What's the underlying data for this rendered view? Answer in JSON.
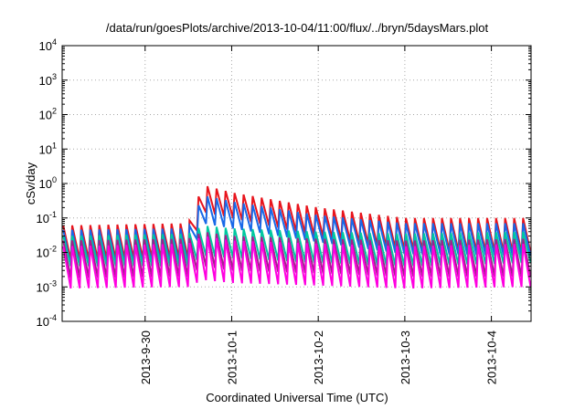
{
  "chart_data": {
    "type": "line",
    "title": "/data/run/goesPlots/archive/2013-10-04/11:00/flux/../bryn/5daysMars.plot",
    "xlabel": "Coordinated Universal Time (UTC)",
    "ylabel": "cSv/day",
    "yscale": "log",
    "ylim": [
      0.0001,
      10000
    ],
    "xlim": [
      "2013-09-29 01:00",
      "2013-10-04 11:00"
    ],
    "x_ticks": [
      "2013-9-30",
      "2013-10-1",
      "2013-10-2",
      "2013-10-3",
      "2013-10-4"
    ],
    "y_ticks": [
      {
        "base": "10",
        "exp": "4"
      },
      {
        "base": "10",
        "exp": "3"
      },
      {
        "base": "10",
        "exp": "2"
      },
      {
        "base": "10",
        "exp": "1"
      },
      {
        "base": "10",
        "exp": "0"
      },
      {
        "base": "10",
        "exp": "-1"
      },
      {
        "base": "10",
        "exp": "-2"
      },
      {
        "base": "10",
        "exp": "-3"
      },
      {
        "base": "10",
        "exp": "-4"
      }
    ],
    "y_tick_labels_plain": [
      "10^4",
      "10^3",
      "10^2",
      "10^1",
      "10^0",
      "10^-1",
      "10^-2",
      "10^-3",
      "10^-4"
    ],
    "grid": true,
    "legend": "none",
    "sawtooth_period_hours": 2.5,
    "series": [
      {
        "color": "#e8141c",
        "x": [
          "2013-09-29 01:00",
          "2013-09-30 12:00",
          "2013-09-30 16:00",
          "2013-10-01 00:00",
          "2013-10-02 00:00",
          "2013-10-03 00:00",
          "2013-10-04 11:00"
        ],
        "peaks": [
          0.06,
          0.07,
          0.9,
          0.55,
          0.2,
          0.1,
          0.1
        ],
        "troughs": [
          0.006,
          0.007,
          0.15,
          0.1,
          0.03,
          0.012,
          0.01
        ]
      },
      {
        "color": "#1868e8",
        "x": [
          "2013-09-29 01:00",
          "2013-09-30 12:00",
          "2013-09-30 16:00",
          "2013-10-01 00:00",
          "2013-10-02 00:00",
          "2013-10-03 00:00",
          "2013-10-04 11:00"
        ],
        "peaks": [
          0.045,
          0.05,
          0.45,
          0.3,
          0.12,
          0.07,
          0.07
        ],
        "troughs": [
          0.004,
          0.005,
          0.07,
          0.05,
          0.02,
          0.009,
          0.008
        ]
      },
      {
        "color": "#00c8a0",
        "x": [
          "2013-09-29 01:00",
          "2013-09-30 12:00",
          "2013-09-30 16:00",
          "2013-10-01 00:00",
          "2013-10-02 00:00",
          "2013-10-03 00:00",
          "2013-10-04 11:00"
        ],
        "peaks": [
          0.03,
          0.035,
          0.06,
          0.05,
          0.04,
          0.035,
          0.04
        ],
        "troughs": [
          0.004,
          0.004,
          0.008,
          0.007,
          0.005,
          0.004,
          0.005
        ]
      },
      {
        "color": "#a0208c",
        "x": [
          "2013-09-29 01:00",
          "2013-09-30 12:00",
          "2013-09-30 16:00",
          "2013-10-01 00:00",
          "2013-10-02 00:00",
          "2013-10-03 00:00",
          "2013-10-04 11:00"
        ],
        "peaks": [
          0.022,
          0.025,
          0.04,
          0.03,
          0.025,
          0.022,
          0.025
        ],
        "troughs": [
          0.0018,
          0.002,
          0.004,
          0.003,
          0.0025,
          0.002,
          0.002
        ]
      },
      {
        "color": "#ff00e0",
        "x": [
          "2013-09-29 01:00",
          "2013-09-30 12:00",
          "2013-09-30 16:00",
          "2013-10-01 00:00",
          "2013-10-02 00:00",
          "2013-10-03 00:00",
          "2013-10-04 11:00"
        ],
        "peaks": [
          0.015,
          0.018,
          0.03,
          0.022,
          0.018,
          0.015,
          0.018
        ],
        "troughs": [
          0.0009,
          0.001,
          0.0016,
          0.0013,
          0.0011,
          0.0009,
          0.001
        ]
      }
    ]
  }
}
